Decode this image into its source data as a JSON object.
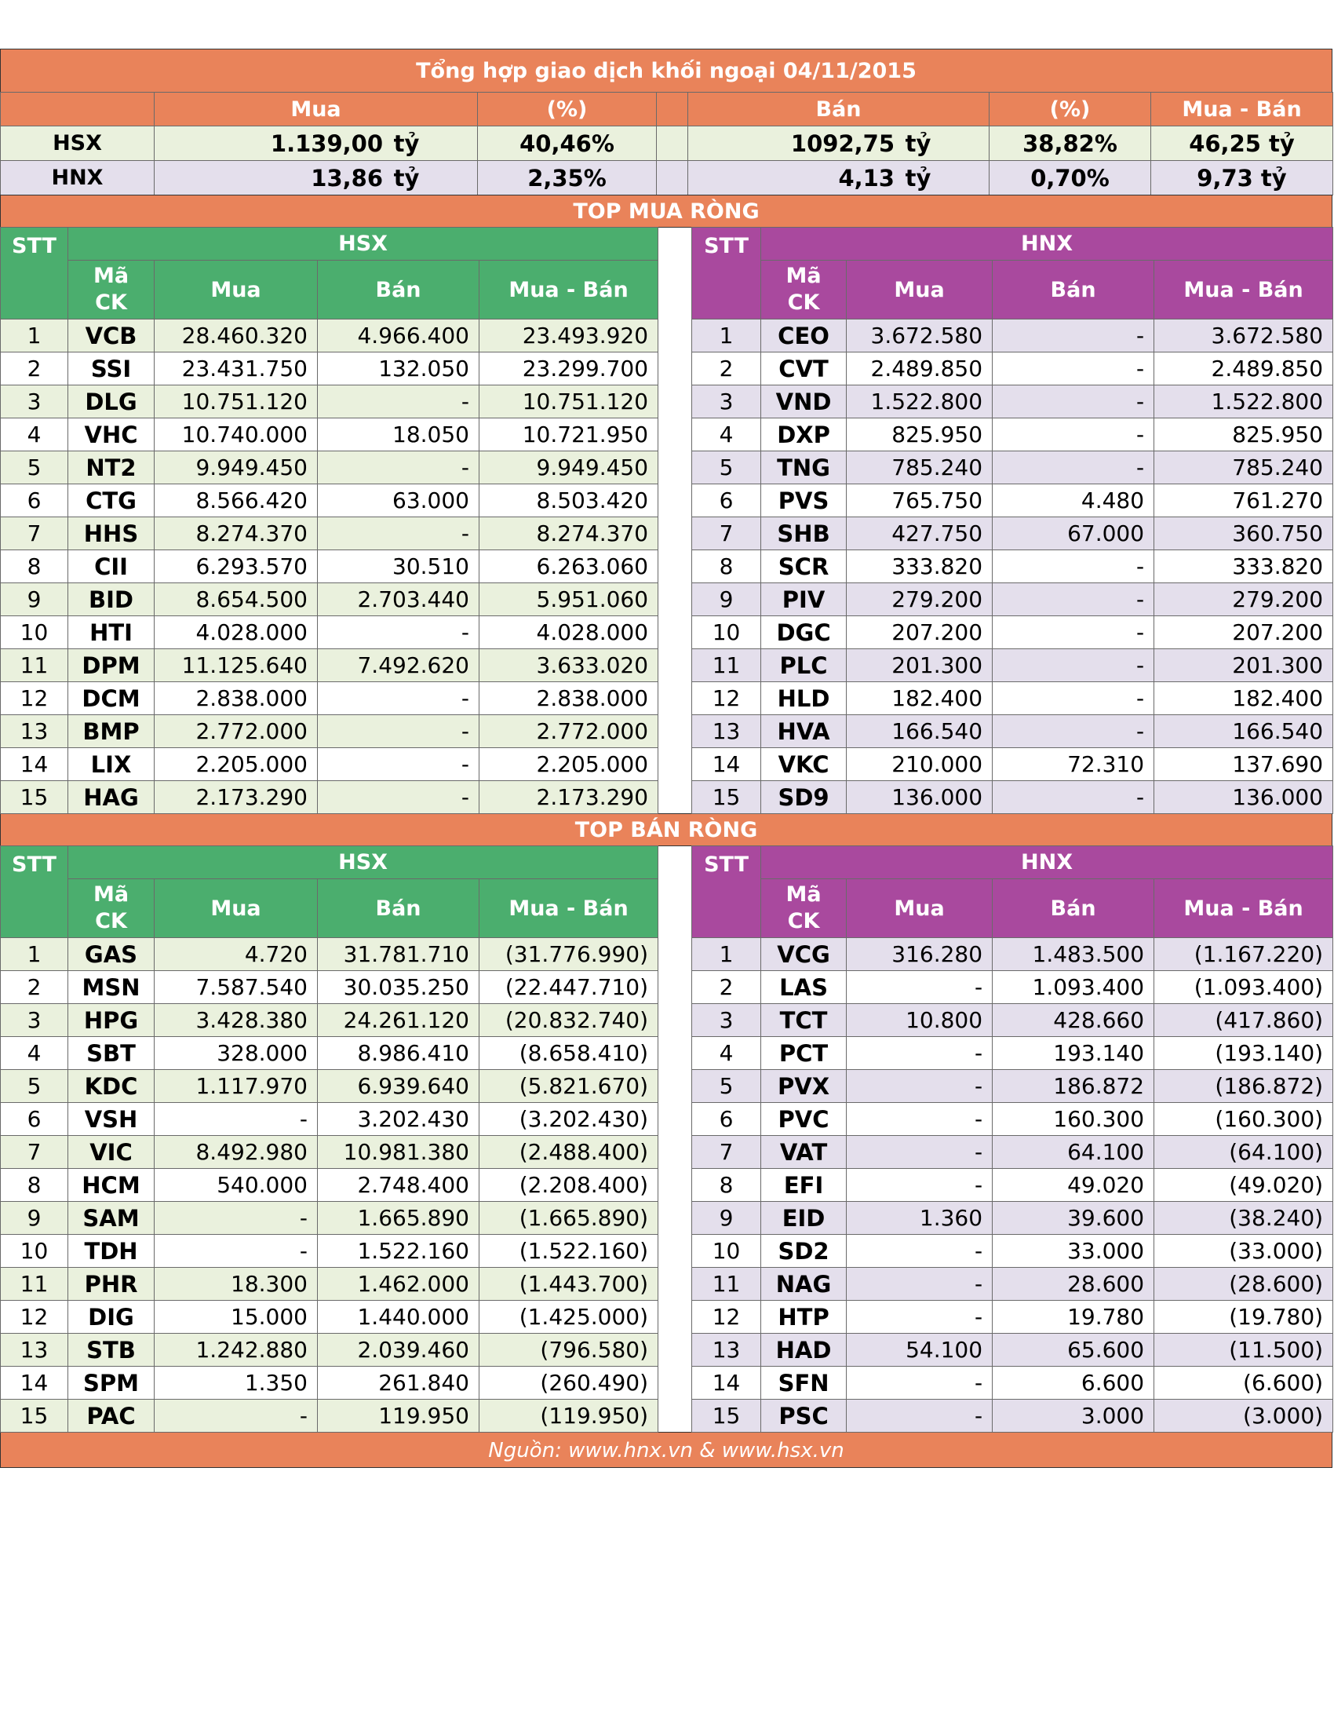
{
  "title": "Tổng hợp giao dịch khối ngoại 04/11/2015",
  "summary": {
    "headers": {
      "mua": "Mua",
      "pct1": "(%)",
      "ban": "Bán",
      "pct2": "(%)",
      "net": "Mua - Bán"
    },
    "unit": "tỷ",
    "hsx": {
      "label": "HSX",
      "mua": "1.139,00",
      "mua_pct": "40,46%",
      "ban": "1092,75",
      "ban_pct": "38,82%",
      "net": "46,25 tỷ"
    },
    "hnx": {
      "label": "HNX",
      "mua": "13,86",
      "mua_pct": "2,35%",
      "ban": "4,13",
      "ban_pct": "0,70%",
      "net": "9,73 tỷ"
    }
  },
  "top_buy": {
    "title": "TOP MUA RÒNG",
    "hsx_label": "HSX",
    "hnx_label": "HNX",
    "col_stt": "STT",
    "col_ma_1": "Mã",
    "col_ma_2": "CK",
    "col_mua": "Mua",
    "col_ban": "Bán",
    "col_net": "Mua - Bán",
    "hsx": [
      [
        "1",
        "VCB",
        "28.460.320",
        "4.966.400",
        "23.493.920"
      ],
      [
        "2",
        "SSI",
        "23.431.750",
        "132.050",
        "23.299.700"
      ],
      [
        "3",
        "DLG",
        "10.751.120",
        "-",
        "10.751.120"
      ],
      [
        "4",
        "VHC",
        "10.740.000",
        "18.050",
        "10.721.950"
      ],
      [
        "5",
        "NT2",
        "9.949.450",
        "-",
        "9.949.450"
      ],
      [
        "6",
        "CTG",
        "8.566.420",
        "63.000",
        "8.503.420"
      ],
      [
        "7",
        "HHS",
        "8.274.370",
        "-",
        "8.274.370"
      ],
      [
        "8",
        "CII",
        "6.293.570",
        "30.510",
        "6.263.060"
      ],
      [
        "9",
        "BID",
        "8.654.500",
        "2.703.440",
        "5.951.060"
      ],
      [
        "10",
        "HTI",
        "4.028.000",
        "-",
        "4.028.000"
      ],
      [
        "11",
        "DPM",
        "11.125.640",
        "7.492.620",
        "3.633.020"
      ],
      [
        "12",
        "DCM",
        "2.838.000",
        "-",
        "2.838.000"
      ],
      [
        "13",
        "BMP",
        "2.772.000",
        "-",
        "2.772.000"
      ],
      [
        "14",
        "LIX",
        "2.205.000",
        "-",
        "2.205.000"
      ],
      [
        "15",
        "HAG",
        "2.173.290",
        "-",
        "2.173.290"
      ]
    ],
    "hnx": [
      [
        "1",
        "CEO",
        "3.672.580",
        "-",
        "3.672.580"
      ],
      [
        "2",
        "CVT",
        "2.489.850",
        "-",
        "2.489.850"
      ],
      [
        "3",
        "VND",
        "1.522.800",
        "-",
        "1.522.800"
      ],
      [
        "4",
        "DXP",
        "825.950",
        "-",
        "825.950"
      ],
      [
        "5",
        "TNG",
        "785.240",
        "-",
        "785.240"
      ],
      [
        "6",
        "PVS",
        "765.750",
        "4.480",
        "761.270"
      ],
      [
        "7",
        "SHB",
        "427.750",
        "67.000",
        "360.750"
      ],
      [
        "8",
        "SCR",
        "333.820",
        "-",
        "333.820"
      ],
      [
        "9",
        "PIV",
        "279.200",
        "-",
        "279.200"
      ],
      [
        "10",
        "DGC",
        "207.200",
        "-",
        "207.200"
      ],
      [
        "11",
        "PLC",
        "201.300",
        "-",
        "201.300"
      ],
      [
        "12",
        "HLD",
        "182.400",
        "-",
        "182.400"
      ],
      [
        "13",
        "HVA",
        "166.540",
        "-",
        "166.540"
      ],
      [
        "14",
        "VKC",
        "210.000",
        "72.310",
        "137.690"
      ],
      [
        "15",
        "SD9",
        "136.000",
        "-",
        "136.000"
      ]
    ]
  },
  "top_sell": {
    "title": "TOP BÁN RÒNG",
    "hsx_label": "HSX",
    "hnx_label": "HNX",
    "col_stt": "STT",
    "col_ma_1": "Mã",
    "col_ma_2": "CK",
    "col_mua": "Mua",
    "col_ban": "Bán",
    "col_net": "Mua - Bán",
    "hsx": [
      [
        "1",
        "GAS",
        "4.720",
        "31.781.710",
        "(31.776.990)"
      ],
      [
        "2",
        "MSN",
        "7.587.540",
        "30.035.250",
        "(22.447.710)"
      ],
      [
        "3",
        "HPG",
        "3.428.380",
        "24.261.120",
        "(20.832.740)"
      ],
      [
        "4",
        "SBT",
        "328.000",
        "8.986.410",
        "(8.658.410)"
      ],
      [
        "5",
        "KDC",
        "1.117.970",
        "6.939.640",
        "(5.821.670)"
      ],
      [
        "6",
        "VSH",
        "-",
        "3.202.430",
        "(3.202.430)"
      ],
      [
        "7",
        "VIC",
        "8.492.980",
        "10.981.380",
        "(2.488.400)"
      ],
      [
        "8",
        "HCM",
        "540.000",
        "2.748.400",
        "(2.208.400)"
      ],
      [
        "9",
        "SAM",
        "-",
        "1.665.890",
        "(1.665.890)"
      ],
      [
        "10",
        "TDH",
        "-",
        "1.522.160",
        "(1.522.160)"
      ],
      [
        "11",
        "PHR",
        "18.300",
        "1.462.000",
        "(1.443.700)"
      ],
      [
        "12",
        "DIG",
        "15.000",
        "1.440.000",
        "(1.425.000)"
      ],
      [
        "13",
        "STB",
        "1.242.880",
        "2.039.460",
        "(796.580)"
      ],
      [
        "14",
        "SPM",
        "1.350",
        "261.840",
        "(260.490)"
      ],
      [
        "15",
        "PAC",
        "-",
        "119.950",
        "(119.950)"
      ]
    ],
    "hnx": [
      [
        "1",
        "VCG",
        "316.280",
        "1.483.500",
        "(1.167.220)"
      ],
      [
        "2",
        "LAS",
        "-",
        "1.093.400",
        "(1.093.400)"
      ],
      [
        "3",
        "TCT",
        "10.800",
        "428.660",
        "(417.860)"
      ],
      [
        "4",
        "PCT",
        "-",
        "193.140",
        "(193.140)"
      ],
      [
        "5",
        "PVX",
        "-",
        "186.872",
        "(186.872)"
      ],
      [
        "6",
        "PVC",
        "-",
        "160.300",
        "(160.300)"
      ],
      [
        "7",
        "VAT",
        "-",
        "64.100",
        "(64.100)"
      ],
      [
        "8",
        "EFI",
        "-",
        "49.020",
        "(49.020)"
      ],
      [
        "9",
        "EID",
        "1.360",
        "39.600",
        "(38.240)"
      ],
      [
        "10",
        "SD2",
        "-",
        "33.000",
        "(33.000)"
      ],
      [
        "11",
        "NAG",
        "-",
        "28.600",
        "(28.600)"
      ],
      [
        "12",
        "HTP",
        "-",
        "19.780",
        "(19.780)"
      ],
      [
        "13",
        "HAD",
        "54.100",
        "65.600",
        "(11.500)"
      ],
      [
        "14",
        "SFN",
        "-",
        "6.600",
        "(6.600)"
      ],
      [
        "15",
        "PSC",
        "-",
        "3.000",
        "(3.000)"
      ]
    ]
  },
  "source": "Nguồn: www.hnx.vn   &   www.hsx.vn",
  "colors": {
    "orange": "#E9835A",
    "green": "#4BAE6E",
    "purple": "#A9499E",
    "green_row": "#EAF1DD",
    "purple_row": "#E4DFEC"
  }
}
